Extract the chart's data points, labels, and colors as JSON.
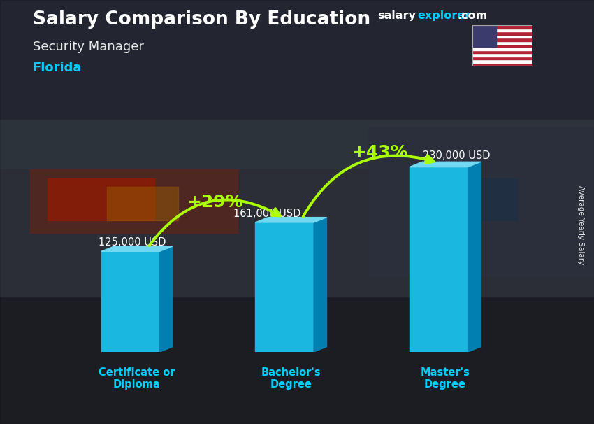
{
  "title_main": "Salary Comparison By Education",
  "subtitle1": "Security Manager",
  "subtitle2": "Florida",
  "categories": [
    "Certificate or\nDiploma",
    "Bachelor's\nDegree",
    "Master's\nDegree"
  ],
  "values": [
    125000,
    161000,
    230000
  ],
  "value_labels": [
    "125,000 USD",
    "161,000 USD",
    "230,000 USD"
  ],
  "pct_labels": [
    "+29%",
    "+43%"
  ],
  "bar_face_color": "#1ab8e0",
  "bar_top_color": "#70d8f0",
  "bar_side_color": "#0080b0",
  "bg_color": "#4a5060",
  "title_color": "#ffffff",
  "subtitle1_color": "#e8e8e8",
  "subtitle2_color": "#00ccff",
  "category_color": "#00ccff",
  "value_label_color": "#ffffff",
  "pct_color": "#aaff00",
  "arrow_color": "#aaff00",
  "ylabel_text": "Average Yearly Salary",
  "site_salary_color": "#ffffff",
  "site_explorer_color": "#00ccff",
  "ylim": [
    0,
    290000
  ],
  "bar_width": 0.38,
  "x_positions": [
    0.5,
    1.5,
    2.5
  ],
  "x_lim": [
    0,
    3.2
  ]
}
